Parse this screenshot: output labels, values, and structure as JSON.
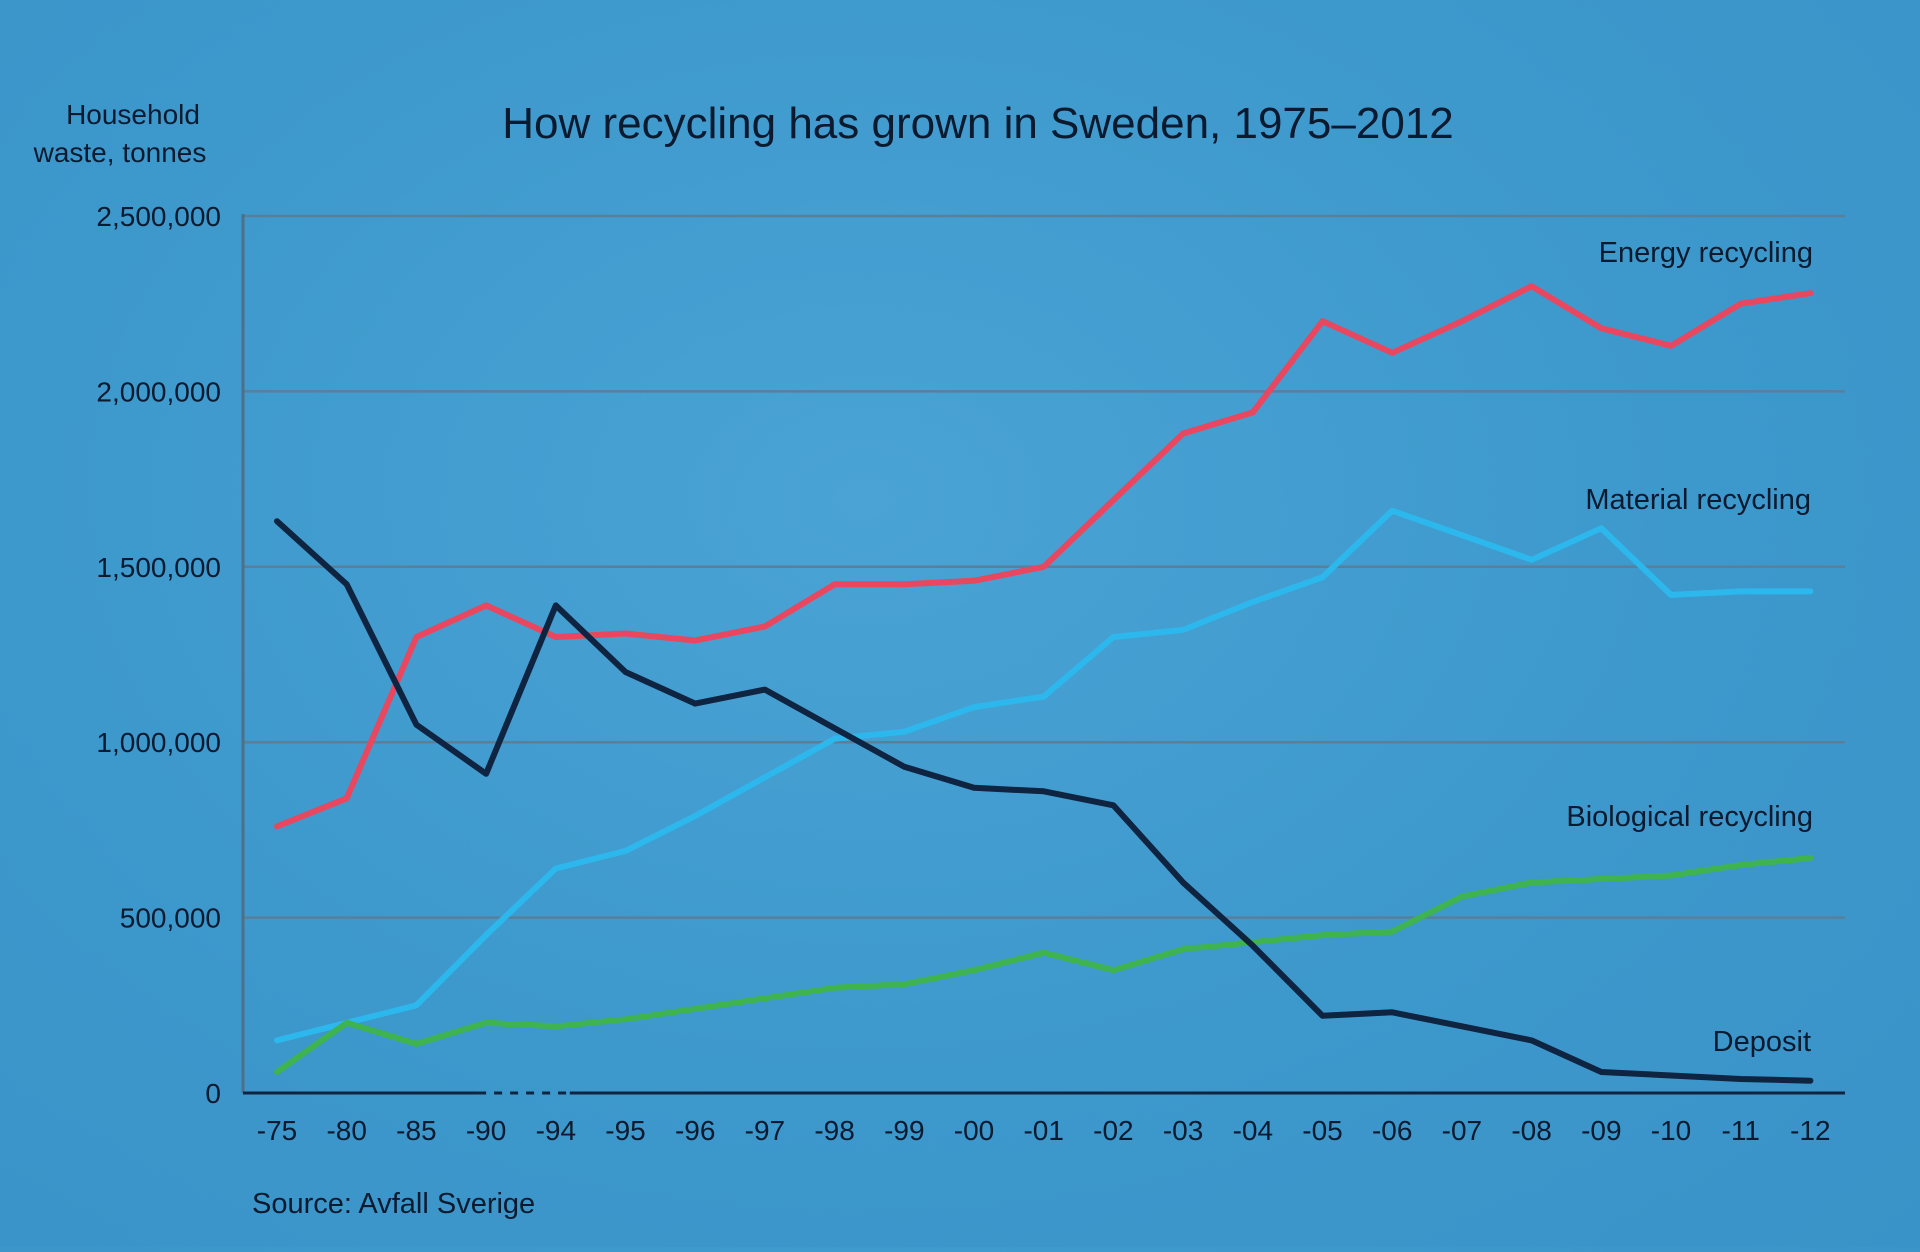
{
  "chart_data": {
    "type": "line",
    "title": "How recycling has grown in Sweden, 1975–2012",
    "ylabel_lines": [
      "Household",
      "waste, tonnes"
    ],
    "source": "Source: Avfall Sverige",
    "categories": [
      "-75",
      "-80",
      "-85",
      "-90",
      "-94",
      "-95",
      "-96",
      "-97",
      "-98",
      "-99",
      "-00",
      "-01",
      "-02",
      "-03",
      "-04",
      "-05",
      "-06",
      "-07",
      "-08",
      "-09",
      "-10",
      "-11",
      "-12"
    ],
    "y_ticks": [
      {
        "value": 0,
        "label": "0"
      },
      {
        "value": 500000,
        "label": "500,000"
      },
      {
        "value": 1000000,
        "label": "1,000,000"
      },
      {
        "value": 1500000,
        "label": "1,500,000"
      },
      {
        "value": 2000000,
        "label": "2,000,000"
      },
      {
        "value": 2500000,
        "label": "2,500,000"
      }
    ],
    "ylim": [
      0,
      2500000
    ],
    "grid": true,
    "axis_break_between": [
      "-90",
      "-94"
    ],
    "series": [
      {
        "name": "Energy recycling",
        "color": "#e8475f",
        "values": [
          760000,
          840000,
          1300000,
          1390000,
          1300000,
          1310000,
          1290000,
          1330000,
          1450000,
          1450000,
          1460000,
          1500000,
          1690000,
          1880000,
          1940000,
          2200000,
          2110000,
          2200000,
          2300000,
          2180000,
          2130000,
          2250000,
          2280000
        ]
      },
      {
        "name": "Material recycling",
        "color": "#2cb8ec",
        "values": [
          150000,
          200000,
          250000,
          450000,
          640000,
          690000,
          790000,
          900000,
          1010000,
          1030000,
          1100000,
          1130000,
          1300000,
          1320000,
          1400000,
          1470000,
          1660000,
          1590000,
          1520000,
          1610000,
          1420000,
          1430000,
          1430000
        ]
      },
      {
        "name": "Biological recycling",
        "color": "#3fb34f",
        "values": [
          60000,
          200000,
          140000,
          200000,
          190000,
          210000,
          240000,
          270000,
          300000,
          310000,
          350000,
          400000,
          350000,
          410000,
          430000,
          450000,
          460000,
          560000,
          600000,
          610000,
          620000,
          650000,
          670000
        ]
      },
      {
        "name": "Deposit",
        "color": "#0e2440",
        "values": [
          1630000,
          1450000,
          1050000,
          910000,
          1390000,
          1200000,
          1110000,
          1150000,
          1040000,
          930000,
          870000,
          860000,
          820000,
          600000,
          420000,
          220000,
          230000,
          190000,
          150000,
          60000,
          50000,
          40000,
          35000
        ]
      }
    ]
  }
}
